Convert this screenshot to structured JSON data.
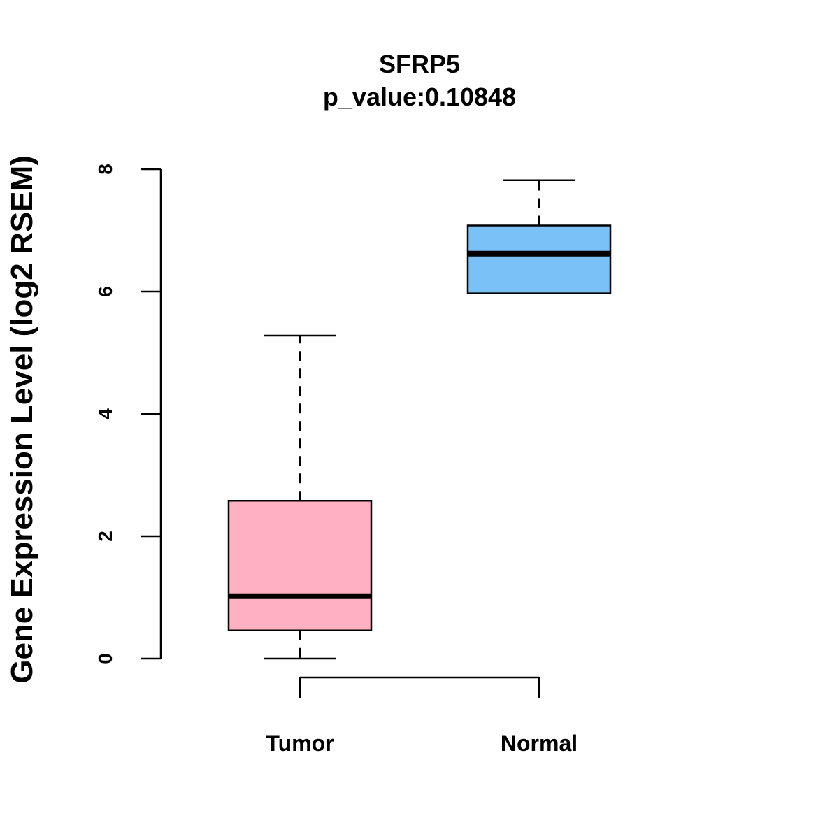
{
  "chart_data": {
    "type": "boxplot",
    "title": "SFRP5",
    "subtitle": "p_value:0.10848",
    "ylabel": "Gene Expression Level (log2 RSEM)",
    "ylim": [
      0,
      8
    ],
    "yticks": [
      0,
      2,
      4,
      6,
      8
    ],
    "categories": [
      "Tumor",
      "Normal"
    ],
    "boxes": [
      {
        "name": "Tumor",
        "min": 0.0,
        "q1": 0.46,
        "median": 1.02,
        "q3": 2.58,
        "max": 5.28,
        "color": "#FFB0C1"
      },
      {
        "name": "Normal",
        "min": 5.97,
        "q1": 5.97,
        "median": 6.62,
        "q3": 7.08,
        "max": 7.82,
        "color": "#7AC1F8"
      }
    ]
  }
}
